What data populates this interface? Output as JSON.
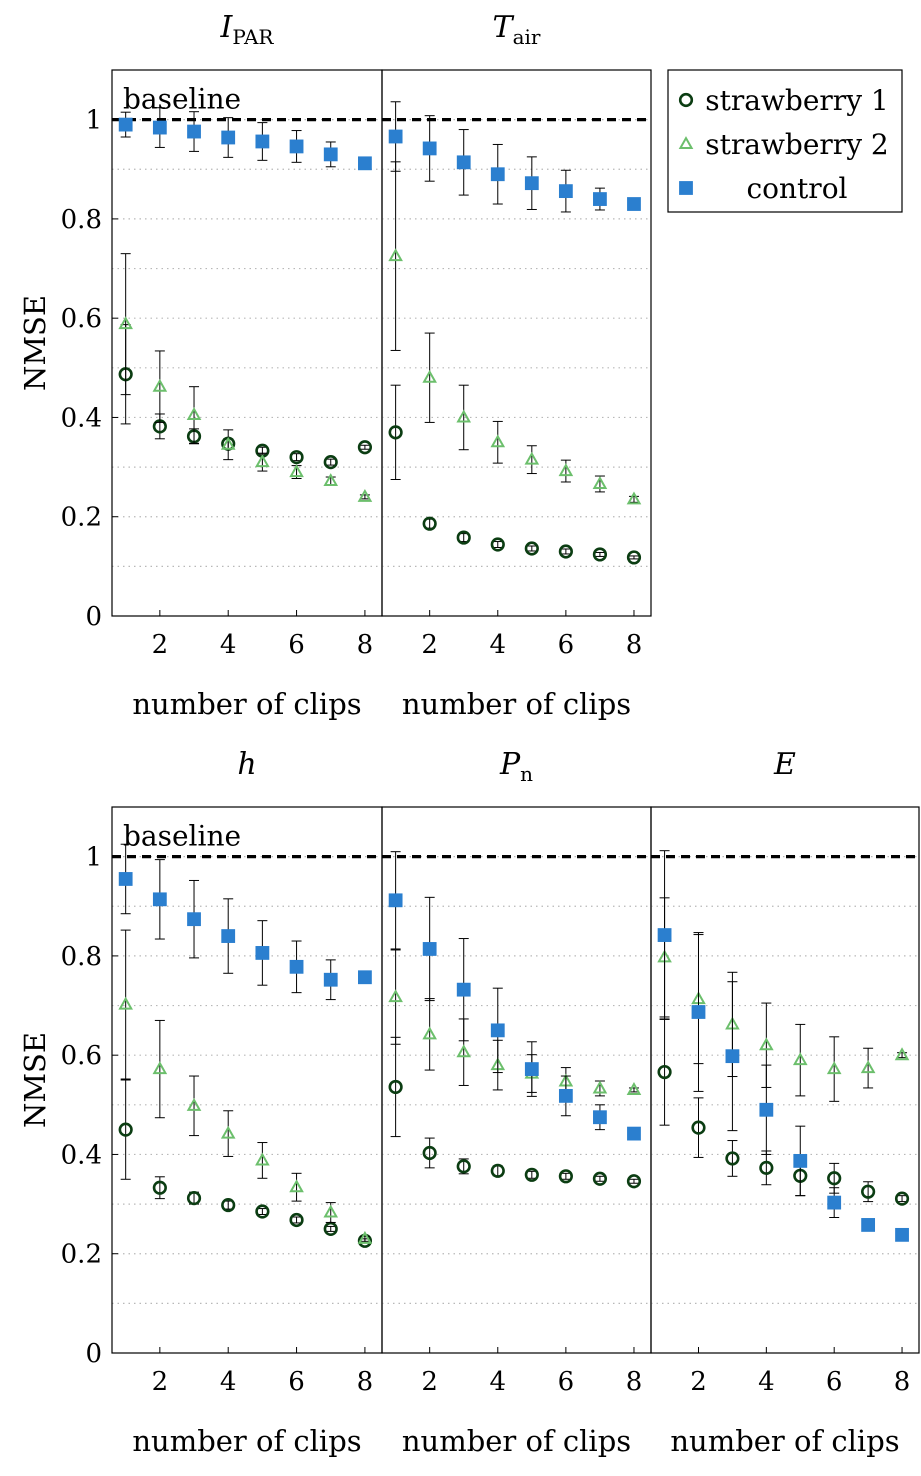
{
  "colors": {
    "strawberry1": "#0b3d12",
    "strawberry2": "#6cbf6c",
    "control": "#2b7fcf",
    "baseline": "#000000",
    "grid": "#b8b8b8"
  },
  "legend": {
    "placement": "top-right",
    "entries": [
      {
        "key": "strawberry1",
        "label": "strawberry 1",
        "marker": "circle"
      },
      {
        "key": "strawberry2",
        "label": "strawberry 2",
        "marker": "triangle"
      },
      {
        "key": "control",
        "label": "control",
        "marker": "square"
      }
    ]
  },
  "chart_data": [
    {
      "type": "scatter",
      "title_main": "I",
      "title_sub": "PAR",
      "xlabel": "number of clips",
      "ylabel": "NMSE",
      "xlim": [
        0.6,
        8.5
      ],
      "ylim": [
        0,
        1.1
      ],
      "xticks": [
        2,
        4,
        6,
        8
      ],
      "yticks": [
        0,
        0.2,
        0.4,
        0.6,
        0.8,
        1
      ],
      "ytick_labels": [
        "0",
        "0.2",
        "0.4",
        "0.6",
        "0.8",
        "1"
      ],
      "grid": "horizontal-dotted",
      "baseline": {
        "y": 1,
        "label": "baseline"
      },
      "x": [
        1,
        2,
        3,
        4,
        5,
        6,
        7,
        8
      ],
      "series": [
        {
          "key": "strawberry1",
          "y": [
            0.487,
            0.382,
            0.362,
            0.347,
            0.333,
            0.32,
            0.31,
            0.34
          ],
          "err": [
            0.1,
            0.025,
            0.015,
            0.01,
            0.007,
            0.007,
            0.006,
            0.004
          ]
        },
        {
          "key": "strawberry2",
          "y": [
            0.588,
            0.462,
            0.405,
            0.345,
            0.31,
            0.29,
            0.272,
            0.24
          ],
          "err": [
            0.142,
            0.072,
            0.057,
            0.03,
            0.018,
            0.013,
            0.008,
            0.004
          ]
        },
        {
          "key": "control",
          "y": [
            0.99,
            0.984,
            0.976,
            0.964,
            0.956,
            0.946,
            0.93,
            0.912
          ],
          "err": [
            0.025,
            0.04,
            0.04,
            0.04,
            0.038,
            0.032,
            0.025,
            0.004
          ]
        }
      ]
    },
    {
      "type": "scatter",
      "title_main": "T",
      "title_sub": "air",
      "xlabel": "number of clips",
      "ylabel": "",
      "xlim": [
        0.6,
        8.5
      ],
      "ylim": [
        0,
        1.1
      ],
      "xticks": [
        2,
        4,
        6,
        8
      ],
      "yticks": [],
      "ytick_labels": [],
      "grid": "horizontal-dotted",
      "baseline": {
        "y": 1,
        "label": ""
      },
      "x": [
        1,
        2,
        3,
        4,
        5,
        6,
        7,
        8
      ],
      "series": [
        {
          "key": "strawberry1",
          "y": [
            0.37,
            0.186,
            0.158,
            0.144,
            0.136,
            0.13,
            0.124,
            0.118
          ],
          "err": [
            0.095,
            0.009,
            0.008,
            0.006,
            0.005,
            0.005,
            0.004,
            0.003
          ]
        },
        {
          "key": "strawberry2",
          "y": [
            0.725,
            0.48,
            0.4,
            0.35,
            0.315,
            0.292,
            0.266,
            0.235
          ],
          "err": [
            0.19,
            0.09,
            0.065,
            0.042,
            0.028,
            0.022,
            0.016,
            0.006
          ]
        },
        {
          "key": "control",
          "y": [
            0.966,
            0.942,
            0.914,
            0.89,
            0.872,
            0.856,
            0.84,
            0.83
          ],
          "err": [
            0.07,
            0.066,
            0.066,
            0.06,
            0.053,
            0.042,
            0.022,
            0.004
          ]
        }
      ]
    },
    {
      "type": "scatter",
      "title_main": "h",
      "title_sub": "",
      "xlabel": "number of clips",
      "ylabel": "NMSE",
      "xlim": [
        0.6,
        8.5
      ],
      "ylim": [
        0,
        1.1
      ],
      "xticks": [
        2,
        4,
        6,
        8
      ],
      "yticks": [
        0,
        0.2,
        0.4,
        0.6,
        0.8,
        1
      ],
      "ytick_labels": [
        "0",
        "0.2",
        "0.4",
        "0.6",
        "0.8",
        "1"
      ],
      "grid": "horizontal-dotted",
      "baseline": {
        "y": 1,
        "label": "baseline"
      },
      "x": [
        1,
        2,
        3,
        4,
        5,
        6,
        7,
        8
      ],
      "series": [
        {
          "key": "strawberry1",
          "y": [
            0.45,
            0.333,
            0.312,
            0.298,
            0.285,
            0.268,
            0.25,
            0.226
          ],
          "err": [
            0.1,
            0.022,
            0.012,
            0.008,
            0.006,
            0.006,
            0.005,
            0.004
          ]
        },
        {
          "key": "strawberry2",
          "y": [
            0.702,
            0.572,
            0.498,
            0.442,
            0.388,
            0.334,
            0.283,
            0.23
          ],
          "err": [
            0.15,
            0.098,
            0.06,
            0.046,
            0.036,
            0.028,
            0.02,
            0.005
          ]
        },
        {
          "key": "control",
          "y": [
            0.955,
            0.914,
            0.874,
            0.84,
            0.806,
            0.778,
            0.752,
            0.757
          ],
          "err": [
            0.07,
            0.08,
            0.078,
            0.075,
            0.065,
            0.052,
            0.04,
            0.004
          ]
        }
      ]
    },
    {
      "type": "scatter",
      "title_main": "P",
      "title_sub": "n",
      "xlabel": "number of clips",
      "ylabel": "",
      "xlim": [
        0.6,
        8.5
      ],
      "ylim": [
        0,
        1.1
      ],
      "xticks": [
        2,
        4,
        6,
        8
      ],
      "yticks": [],
      "ytick_labels": [],
      "grid": "horizontal-dotted",
      "baseline": {
        "y": 1,
        "label": ""
      },
      "x": [
        1,
        2,
        3,
        4,
        5,
        6,
        7,
        8
      ],
      "series": [
        {
          "key": "strawberry1",
          "y": [
            0.536,
            0.403,
            0.376,
            0.367,
            0.359,
            0.356,
            0.351,
            0.346
          ],
          "err": [
            0.1,
            0.03,
            0.015,
            0.01,
            0.007,
            0.006,
            0.005,
            0.004
          ]
        },
        {
          "key": "strawberry2",
          "y": [
            0.717,
            0.642,
            0.606,
            0.58,
            0.563,
            0.547,
            0.533,
            0.53
          ],
          "err": [
            0.095,
            0.072,
            0.067,
            0.05,
            0.038,
            0.028,
            0.015,
            0.004
          ]
        },
        {
          "key": "control",
          "y": [
            0.912,
            0.814,
            0.732,
            0.65,
            0.572,
            0.518,
            0.475,
            0.442
          ],
          "err": [
            0.098,
            0.104,
            0.103,
            0.085,
            0.055,
            0.04,
            0.025,
            0.004
          ]
        }
      ]
    },
    {
      "type": "scatter",
      "title_main": "E",
      "title_sub": "",
      "xlabel": "number of clips",
      "ylabel": "",
      "xlim": [
        0.6,
        8.5
      ],
      "ylim": [
        0,
        1.1
      ],
      "xticks": [
        2,
        4,
        6,
        8
      ],
      "yticks": [],
      "ytick_labels": [],
      "grid": "horizontal-dotted",
      "baseline": {
        "y": 1,
        "label": ""
      },
      "x": [
        1,
        2,
        3,
        4,
        5,
        6,
        7,
        8
      ],
      "series": [
        {
          "key": "strawberry1",
          "y": [
            0.566,
            0.454,
            0.392,
            0.373,
            0.357,
            0.352,
            0.325,
            0.311
          ],
          "err": [
            0.107,
            0.06,
            0.036,
            0.034,
            0.04,
            0.03,
            0.02,
            0.006
          ]
        },
        {
          "key": "strawberry2",
          "y": [
            0.797,
            0.713,
            0.662,
            0.62,
            0.59,
            0.572,
            0.574,
            0.6
          ],
          "err": [
            0.12,
            0.13,
            0.105,
            0.085,
            0.072,
            0.065,
            0.04,
            0.005
          ]
        },
        {
          "key": "control",
          "y": [
            0.842,
            0.687,
            0.598,
            0.49,
            0.387,
            0.303,
            0.258,
            0.238
          ],
          "err": [
            0.17,
            0.16,
            0.15,
            0.09,
            0.07,
            0.03,
            0.004,
            0.004
          ]
        }
      ]
    }
  ]
}
